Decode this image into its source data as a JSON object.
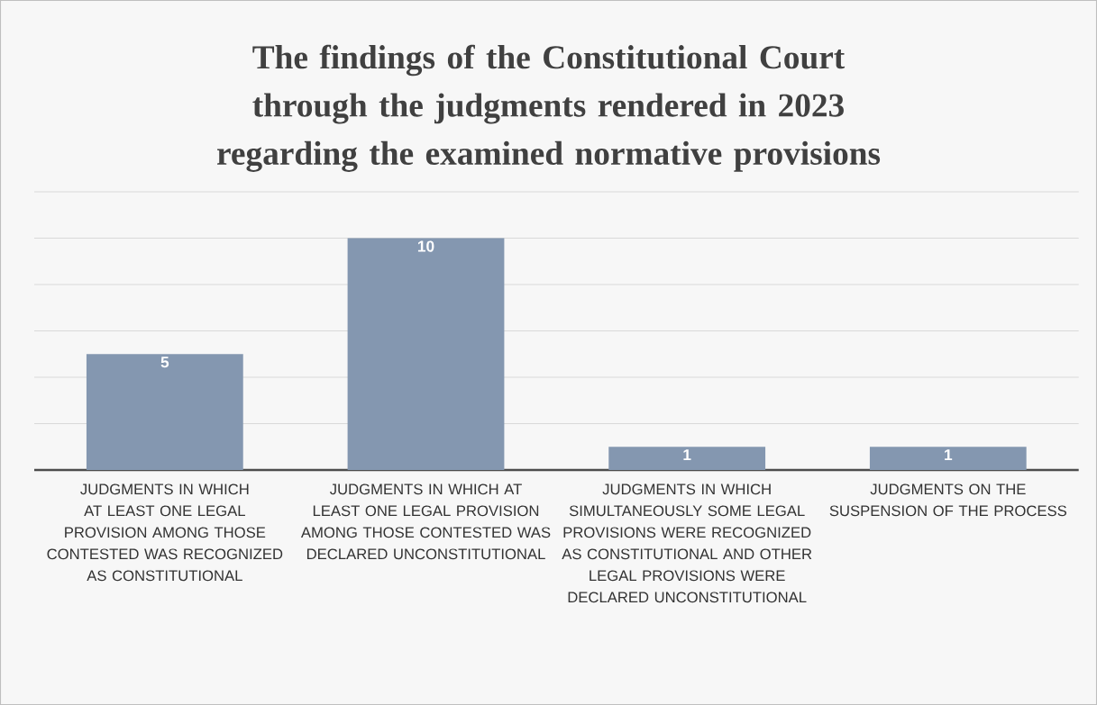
{
  "chart_data": {
    "type": "bar",
    "title": "The findings of the Constitutional Court through the judgments rendered in 2023 regarding the examined normative provisions",
    "categories": [
      "JUDGMENTS IN WHICH AT LEAST ONE LEGAL PROVISION AMONG THOSE CONTESTED WAS RECOGNIZED AS CONSTITUTIONAL",
      "JUDGMENTS IN WHICH AT LEAST ONE LEGAL PROVISION AMONG THOSE CONTESTED WAS DECLARED UNCONSTITUTIONAL",
      "JUDGMENTS IN WHICH SIMULTANEOUSLY SOME LEGAL PROVISIONS WERE RECOGNIZED AS CONSTITUTIONAL AND OTHER LEGAL PROVISIONS WERE DECLARED UNCONSTITUTIONAL",
      "JUDGMENTS ON THE SUSPENSION OF THE PROCESS"
    ],
    "values": [
      5,
      10,
      1,
      1
    ],
    "color": "#8497b0",
    "data_labels": true,
    "grid": "y",
    "tick_labels": "x"
  }
}
